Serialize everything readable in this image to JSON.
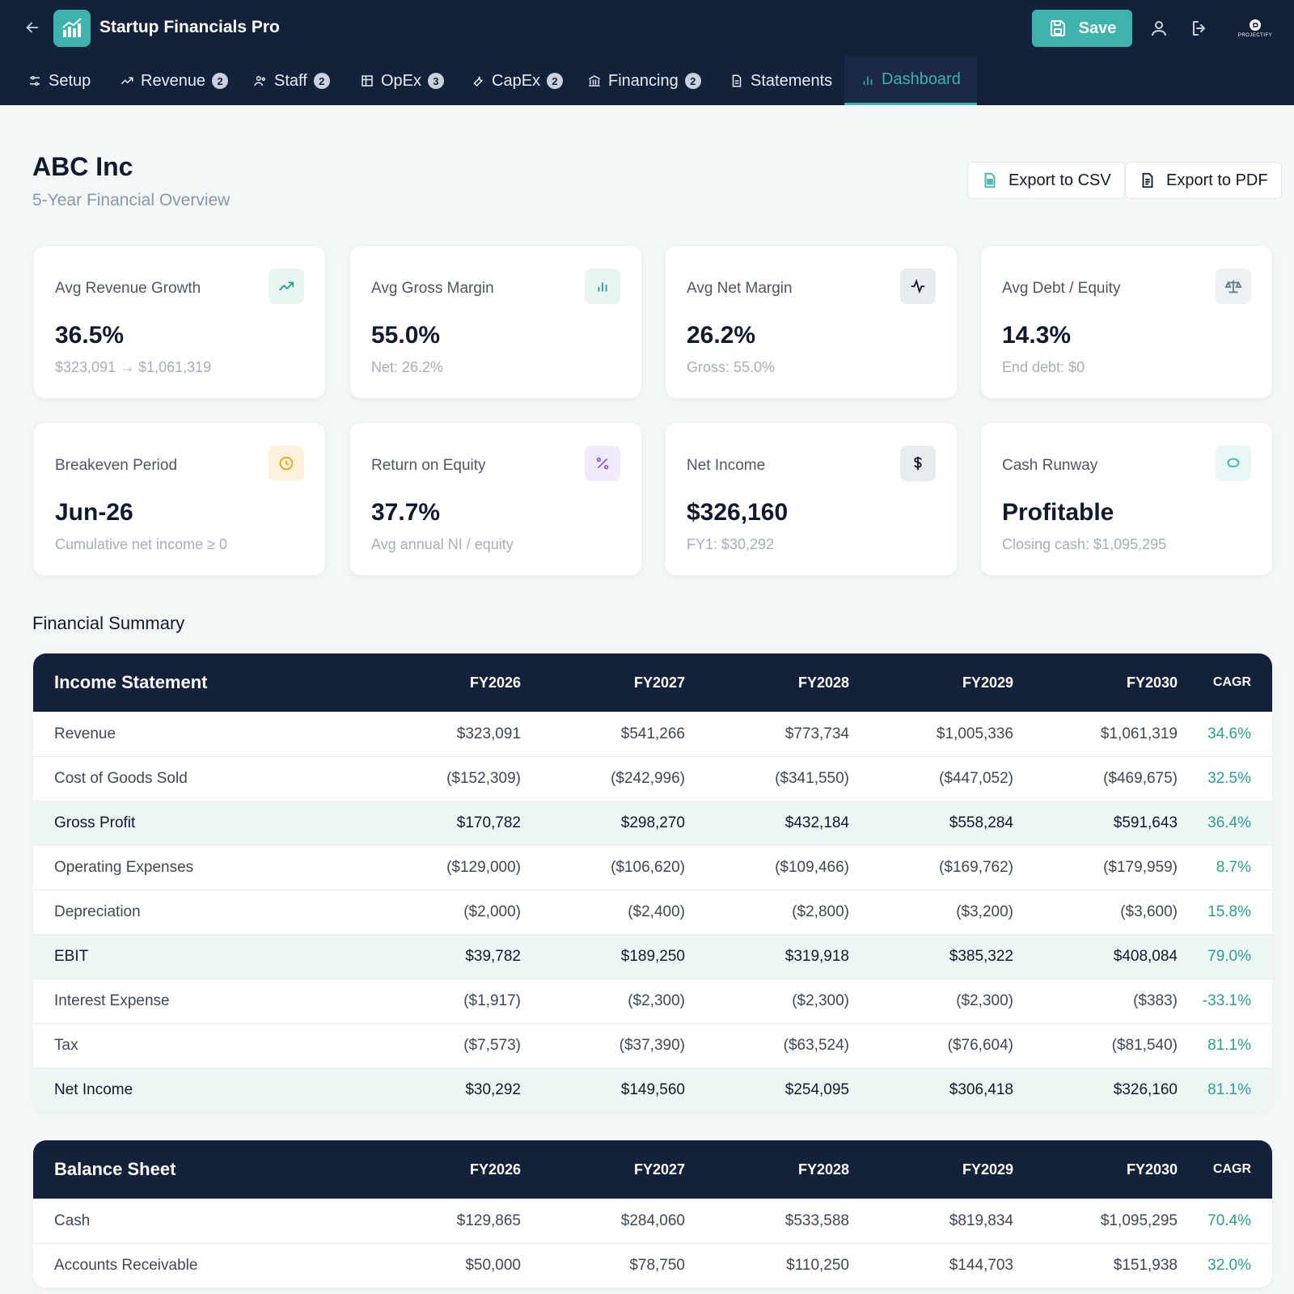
{
  "header": {
    "app_title": "Startup Financials Pro",
    "save_label": "Save",
    "brand_text": "PROJECTIFY"
  },
  "nav": {
    "items": [
      {
        "label": "Setup",
        "badge": ""
      },
      {
        "label": "Revenue",
        "badge": "2"
      },
      {
        "label": "Staff",
        "badge": "2"
      },
      {
        "label": "OpEx",
        "badge": "3"
      },
      {
        "label": "CapEx",
        "badge": "2"
      },
      {
        "label": "Financing",
        "badge": "2"
      },
      {
        "label": "Statements",
        "badge": ""
      },
      {
        "label": "Dashboard",
        "badge": ""
      }
    ],
    "active": "Dashboard"
  },
  "page": {
    "title": "ABC Inc",
    "subtitle": "5-Year Financial Overview",
    "export_csv": "Export to CSV",
    "export_pdf": "Export to PDF"
  },
  "cards": [
    {
      "label": "Avg Revenue Growth",
      "value": "36.5%",
      "sub": "$323,091 → $1,061,319",
      "icon": "trending-up-icon"
    },
    {
      "label": "Avg Gross Margin",
      "value": "55.0%",
      "sub": "Net: 26.2%",
      "icon": "bar-chart-icon"
    },
    {
      "label": "Avg Net Margin",
      "value": "26.2%",
      "sub": "Gross: 55.0%",
      "icon": "activity-icon"
    },
    {
      "label": "Avg Debt / Equity",
      "value": "14.3%",
      "sub": "End debt: $0",
      "icon": "scale-icon"
    },
    {
      "label": "Breakeven Period",
      "value": "Jun-26",
      "sub": "Cumulative net income ≥ 0",
      "icon": "clock-icon"
    },
    {
      "label": "Return on Equity",
      "value": "37.7%",
      "sub": "Avg annual NI / equity",
      "icon": "percent-icon"
    },
    {
      "label": "Net Income",
      "value": "$326,160",
      "sub": "FY1: $30,292",
      "icon": "dollar-icon"
    },
    {
      "label": "Cash Runway",
      "value": "Profitable",
      "sub": "Closing cash: $1,095,295",
      "icon": "piggy-bank-icon"
    }
  ],
  "summary_title": "Financial Summary",
  "income_statement": {
    "title": "Income Statement",
    "columns": [
      "FY2026",
      "FY2027",
      "FY2028",
      "FY2029",
      "FY2030",
      "CAGR"
    ],
    "rows": [
      {
        "label": "Revenue",
        "values": [
          "$323,091",
          "$541,266",
          "$773,734",
          "$1,005,336",
          "$1,061,319"
        ],
        "cagr": "34.6%",
        "highlight": false
      },
      {
        "label": "Cost of Goods Sold",
        "values": [
          "($152,309)",
          "($242,996)",
          "($341,550)",
          "($447,052)",
          "($469,675)"
        ],
        "cagr": "32.5%",
        "highlight": false
      },
      {
        "label": "Gross Profit",
        "values": [
          "$170,782",
          "$298,270",
          "$432,184",
          "$558,284",
          "$591,643"
        ],
        "cagr": "36.4%",
        "highlight": true
      },
      {
        "label": "Operating Expenses",
        "values": [
          "($129,000)",
          "($106,620)",
          "($109,466)",
          "($169,762)",
          "($179,959)"
        ],
        "cagr": "8.7%",
        "highlight": false
      },
      {
        "label": "Depreciation",
        "values": [
          "($2,000)",
          "($2,400)",
          "($2,800)",
          "($3,200)",
          "($3,600)"
        ],
        "cagr": "15.8%",
        "highlight": false
      },
      {
        "label": "EBIT",
        "values": [
          "$39,782",
          "$189,250",
          "$319,918",
          "$385,322",
          "$408,084"
        ],
        "cagr": "79.0%",
        "highlight": true
      },
      {
        "label": "Interest Expense",
        "values": [
          "($1,917)",
          "($2,300)",
          "($2,300)",
          "($2,300)",
          "($383)"
        ],
        "cagr": "-33.1%",
        "highlight": false
      },
      {
        "label": "Tax",
        "values": [
          "($7,573)",
          "($37,390)",
          "($63,524)",
          "($76,604)",
          "($81,540)"
        ],
        "cagr": "81.1%",
        "highlight": false
      },
      {
        "label": "Net Income",
        "values": [
          "$30,292",
          "$149,560",
          "$254,095",
          "$306,418",
          "$326,160"
        ],
        "cagr": "81.1%",
        "highlight": true
      }
    ]
  },
  "balance_sheet": {
    "title": "Balance Sheet",
    "columns": [
      "FY2026",
      "FY2027",
      "FY2028",
      "FY2029",
      "FY2030",
      "CAGR"
    ],
    "rows": [
      {
        "label": "Cash",
        "values": [
          "$129,865",
          "$284,060",
          "$533,588",
          "$819,834",
          "$1,095,295"
        ],
        "cagr": "70.4%",
        "highlight": false
      },
      {
        "label": "Accounts Receivable",
        "values": [
          "$50,000",
          "$78,750",
          "$110,250",
          "$144,703",
          "$151,938"
        ],
        "cagr": "32.0%",
        "highlight": false
      }
    ]
  },
  "colors": {
    "navy": "#13213a",
    "teal": "#3db3ac"
  }
}
